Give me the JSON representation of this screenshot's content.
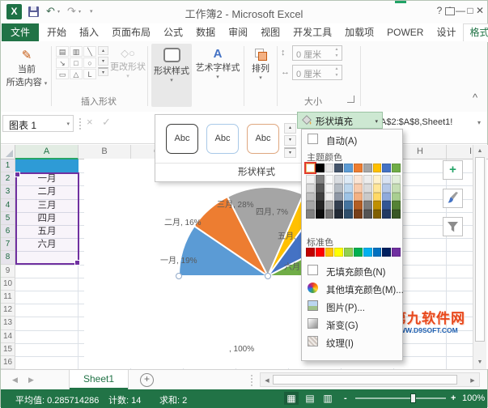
{
  "title_bar": {
    "title": "工作簿2 - Microsoft Excel",
    "help": "?",
    "minimize": "—",
    "maximize": "□",
    "close": "✕"
  },
  "menu_tabs": {
    "file": "文件",
    "tabs": [
      "开始",
      "插入",
      "页面布局",
      "公式",
      "数据",
      "审阅",
      "视图",
      "开发工具",
      "加载项",
      "POWER",
      "设计"
    ],
    "active": "格式"
  },
  "ribbon": {
    "current_selection_line1": "当前",
    "current_selection_line2": "所选内容",
    "insert_shapes_group": "插入形状",
    "change_shape": "更改形状",
    "shape_styles": "形状样式",
    "wordart_styles": "艺术字样式",
    "arrange": "排列",
    "size_group": "大小",
    "height_value": "0 厘米",
    "width_value": "0 厘米"
  },
  "formula_bar": {
    "name_box": "图表 1",
    "formula_fragment": "A$2:$A$8,Sheet1!"
  },
  "style_gallery": {
    "footer": "形状样式",
    "items": [
      {
        "label": "Abc",
        "border": "#3B3B39"
      },
      {
        "label": "Abc",
        "border": "#A9C9E8"
      },
      {
        "label": "Abc",
        "border": "#DFA77F"
      }
    ]
  },
  "fill_menu": {
    "button": "形状填充",
    "automatic": "自动(A)",
    "theme_label": "主题颜色",
    "theme_colors": [
      "#FFFFFF",
      "#000000",
      "#E7E6E6",
      "#44546A",
      "#5B9BD5",
      "#ED7D31",
      "#A5A5A5",
      "#FFC000",
      "#4472C4",
      "#70AD47"
    ],
    "standard_label": "标准色",
    "standard_colors": [
      "#C00000",
      "#FF0000",
      "#FFC000",
      "#FFFF00",
      "#92D050",
      "#00B050",
      "#00B0F0",
      "#0070C0",
      "#002060",
      "#7030A0"
    ],
    "no_fill": "无填充颜色(N)",
    "more_colors": "其他填充颜色(M)...",
    "picture": "图片(P)...",
    "gradient": "渐变(G)",
    "texture": "纹理(I)"
  },
  "sheet": {
    "columns": [
      "A",
      "B",
      "C",
      "D",
      "E",
      "F",
      "G",
      "H",
      "I"
    ],
    "rows": [
      "1",
      "2",
      "3",
      "4",
      "5",
      "6",
      "7",
      "8",
      "9",
      "10",
      "11",
      "12",
      "13",
      "14",
      "15",
      "16"
    ],
    "a_values": [
      "一月",
      "二月",
      "三月",
      "四月",
      "五月",
      "六月"
    ]
  },
  "chart_data": {
    "type": "pie",
    "subtype": "semicircle",
    "title": "",
    "legend": "none",
    "categories": [
      "一月",
      "二月",
      "三月",
      "四月",
      "五月",
      "六月"
    ],
    "values_percent": [
      19,
      16,
      28,
      7,
      15,
      15
    ],
    "hidden_bottom_label": ", 100%",
    "colors": [
      "#5B9BD5",
      "#ED7D31",
      "#A5A5A5",
      "#FFC000",
      "#4472C4",
      "#70AD47"
    ],
    "visible_labels": [
      "一月, 19%",
      "二月, 16%",
      "三月, 28%",
      "四月, 7%",
      "五月,",
      "六月",
      ", 100%"
    ]
  },
  "sheet_tabs": {
    "sheet1": "Sheet1",
    "add": "+"
  },
  "status_bar": {
    "average": "平均值: 0.285714286",
    "count": "计数: 14",
    "sum": "求和: 2",
    "zoom_minus": "-",
    "zoom_plus": "+",
    "zoom_level": "100%"
  },
  "watermark": {
    "line1": "第九软件网",
    "line2": "WWW.D9SOFT.COM"
  }
}
